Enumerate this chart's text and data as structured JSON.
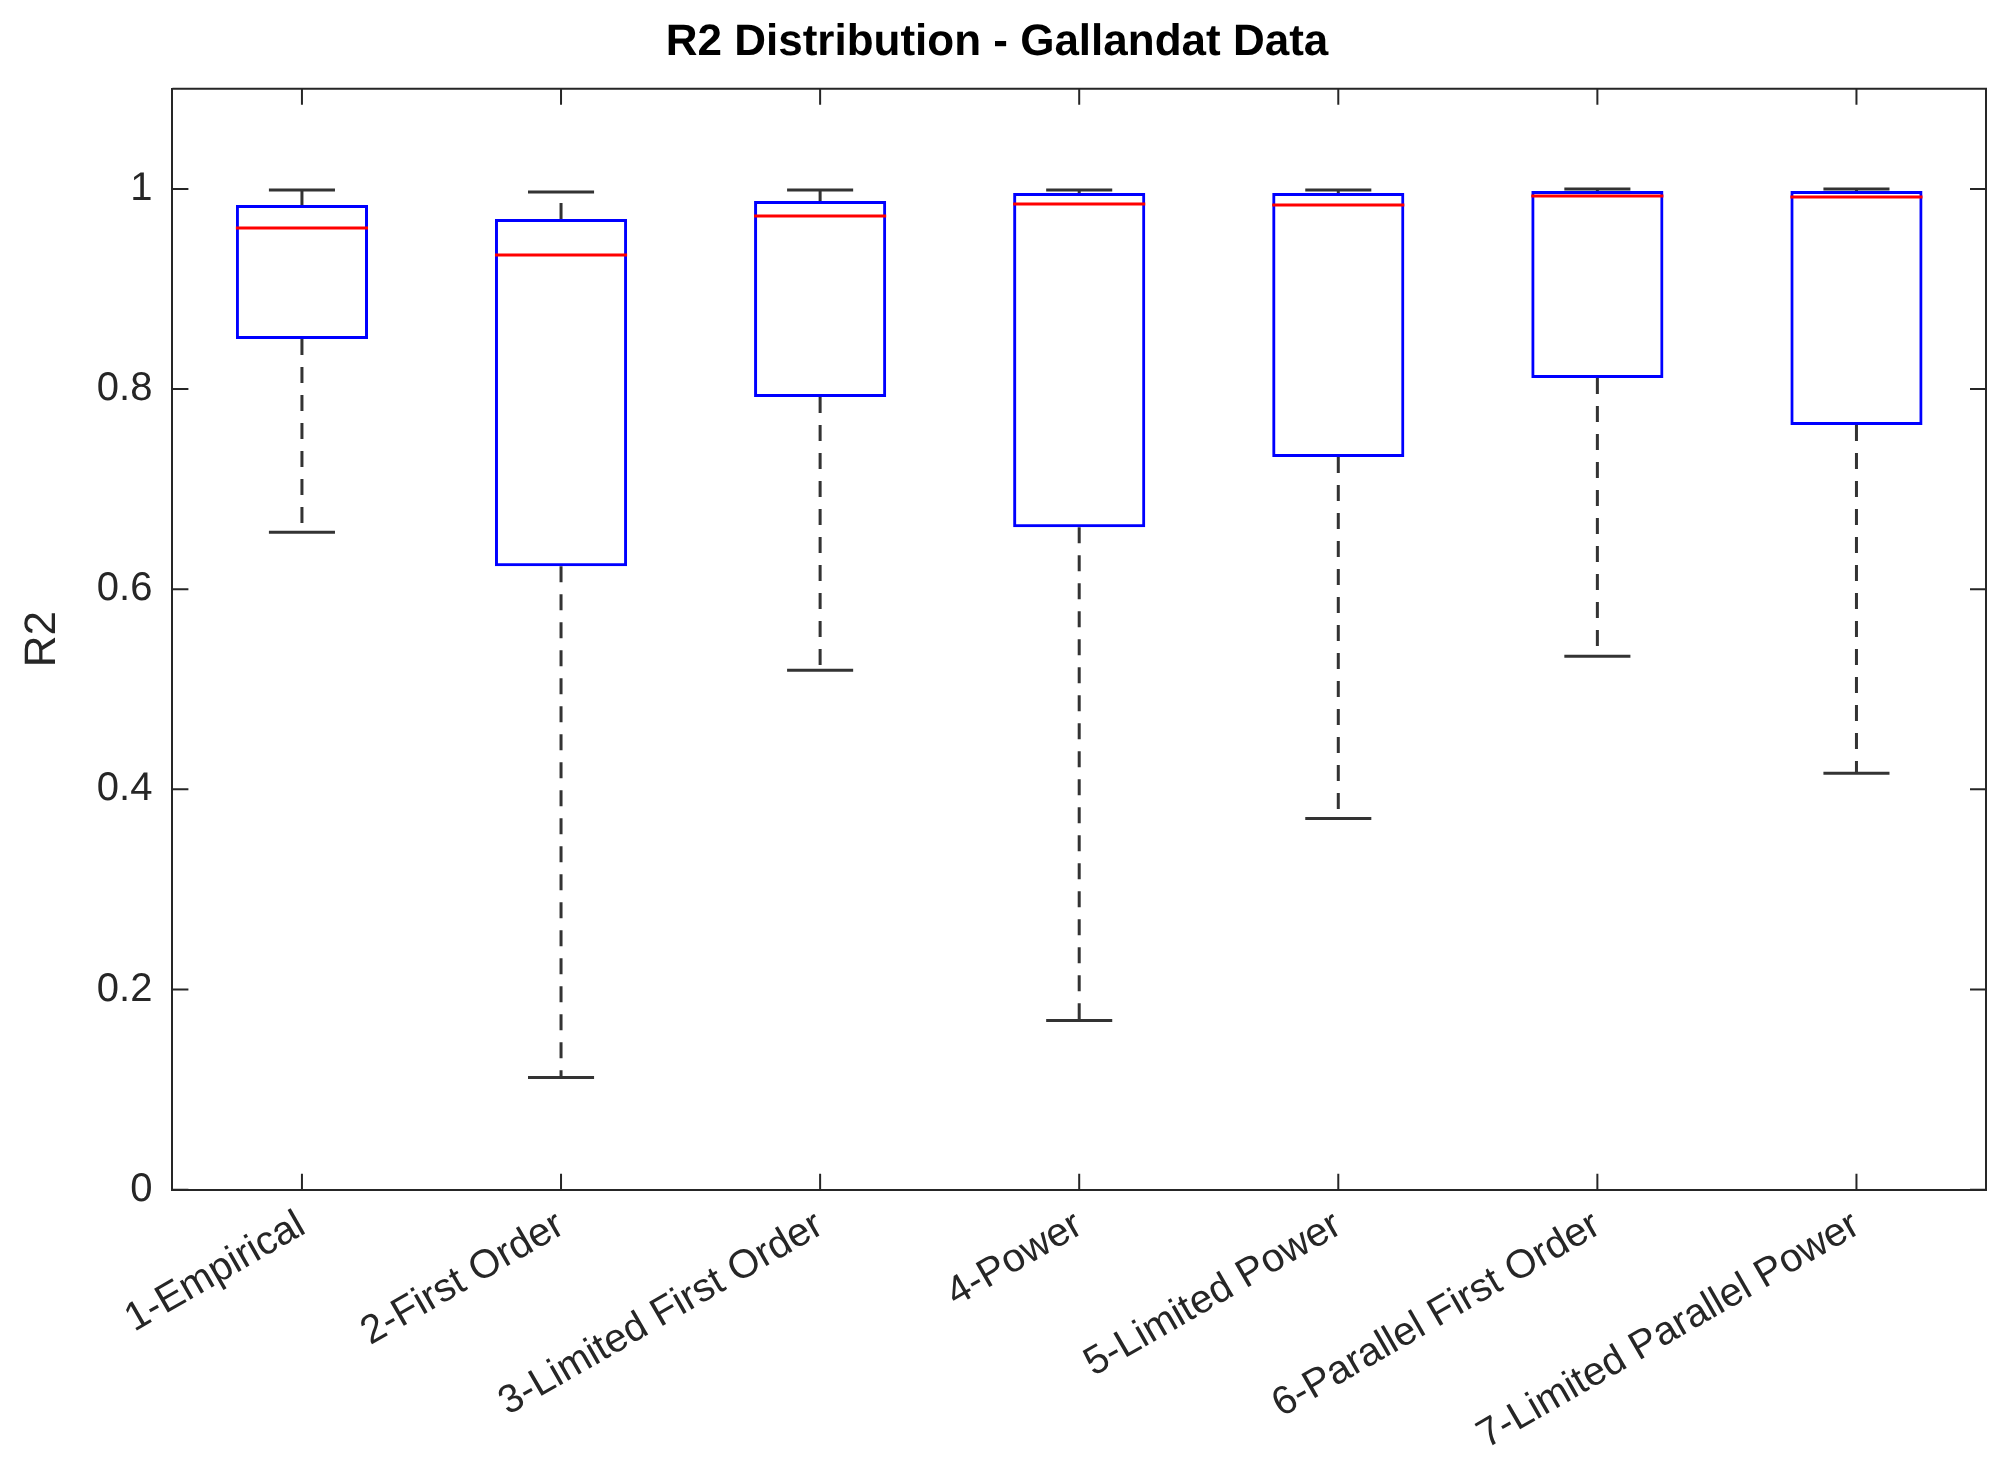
{
  "chart_data": {
    "type": "box",
    "title": "R2 Distribution - Gallandat Data",
    "ylabel": "R2",
    "categories": [
      "1-Empirical",
      "2-First Order",
      "3-Limited First Order",
      "4-Power",
      "5-Limited Power",
      "6-Parallel First Order",
      "7-Limited Parallel Power"
    ],
    "series": [
      {
        "color": "#0000ff",
        "boxes": [
          {
            "low": 0.657,
            "q1": 0.85,
            "median": 0.961,
            "q3": 0.984,
            "high": 0.999
          },
          {
            "low": 0.112,
            "q1": 0.623,
            "median": 0.934,
            "q3": 0.97,
            "high": 0.997
          },
          {
            "low": 0.519,
            "q1": 0.792,
            "median": 0.973,
            "q3": 0.988,
            "high": 0.999
          },
          {
            "low": 0.169,
            "q1": 0.662,
            "median": 0.985,
            "q3": 0.996,
            "high": 0.999
          },
          {
            "low": 0.371,
            "q1": 0.732,
            "median": 0.984,
            "q3": 0.996,
            "high": 0.999
          },
          {
            "low": 0.533,
            "q1": 0.811,
            "median": 0.993,
            "q3": 0.998,
            "high": 1.0
          },
          {
            "low": 0.416,
            "q1": 0.764,
            "median": 0.992,
            "q3": 0.998,
            "high": 1.0
          }
        ]
      }
    ],
    "ylim": [
      0,
      1.1
    ],
    "yticks": [
      0,
      0.2,
      0.4,
      0.6,
      0.8,
      1
    ],
    "grid": false,
    "legend": false
  }
}
